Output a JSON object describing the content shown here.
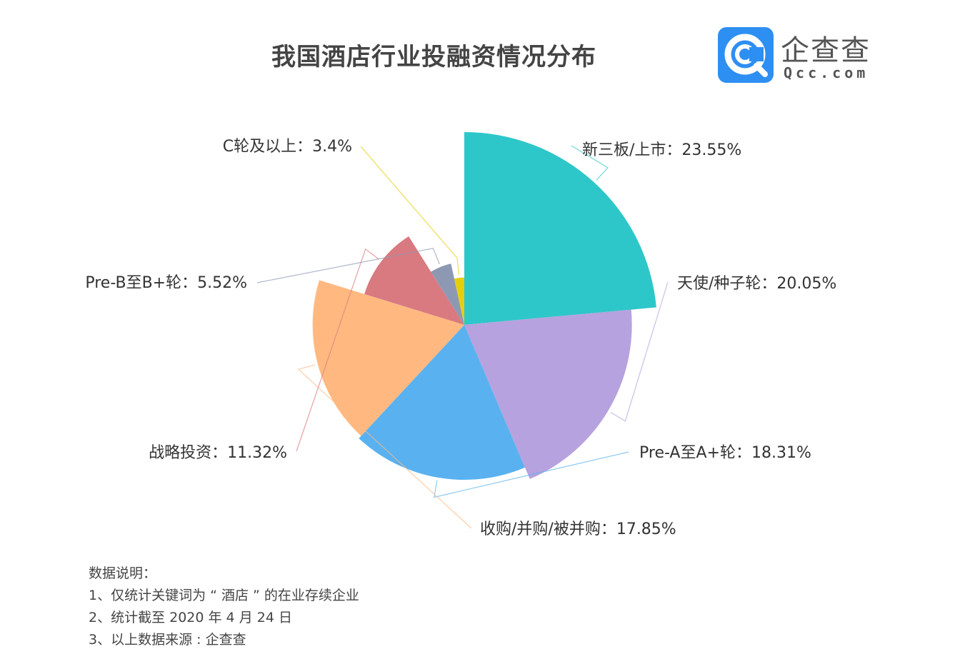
{
  "title": "我国酒店行业投融资情况分布",
  "brand": {
    "name": "企查查",
    "url": "Qcc.com",
    "icon": "qcc-logo-icon",
    "color": "#2e8ff2"
  },
  "chart_data": {
    "type": "pie",
    "variant": "rose (nightingale, radius by value)",
    "title": "我国酒店行业投融资情况分布",
    "series": [
      {
        "categories": [
          "新三板/上市",
          "天使/种子轮",
          "Pre-A至A+轮",
          "收购/并购/被并购",
          "战略投资",
          "Pre-B至B+轮",
          "C轮及以上"
        ],
        "values": [
          23.55,
          20.05,
          18.31,
          17.85,
          11.32,
          5.52,
          3.4
        ],
        "unit": "%",
        "colors": [
          "#2ec7c9",
          "#b6a2de",
          "#5ab1ef",
          "#ffb980",
          "#d87a80",
          "#8d98b3",
          "#e5cf0d"
        ]
      }
    ],
    "labels": [
      "新三板/上市：23.55%",
      "天使/种子轮：20.05%",
      "Pre-A至A+轮：18.31%",
      "收购/并购/被并购：17.85%",
      "战略投资：11.32%",
      "Pre-B至B+轮：5.52%",
      "C轮及以上：3.4%"
    ]
  },
  "notes": {
    "heading": "数据说明：",
    "items": [
      "1、仅统计关键词为 “ 酒店 ” 的在业存续企业",
      "2、统计截至 2020 年 4 月 24 日",
      "3、以上数据来源 : 企查查"
    ]
  }
}
